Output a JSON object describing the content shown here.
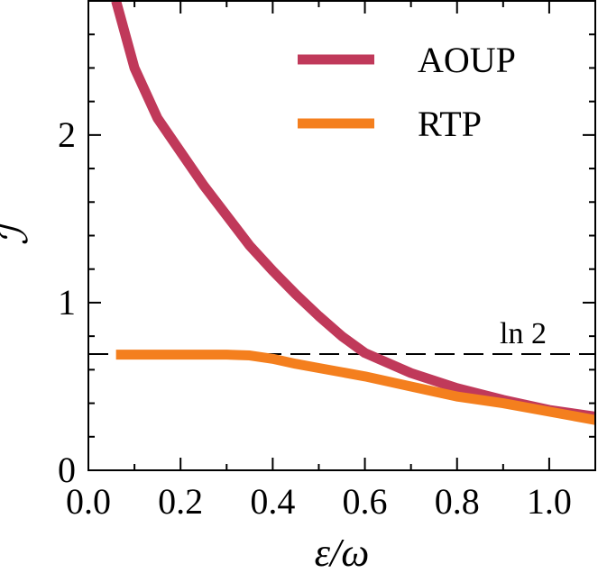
{
  "chart_data": {
    "type": "line",
    "x_label": "ε/ω",
    "y_label": "ℐ",
    "x": [
      0.06,
      0.1,
      0.15,
      0.2,
      0.25,
      0.3,
      0.35,
      0.4,
      0.45,
      0.5,
      0.55,
      0.6,
      0.7,
      0.8,
      0.9,
      1.0,
      1.1
    ],
    "series": [
      {
        "name": "AOUP",
        "color": "#c0395a",
        "values": [
          2.8,
          2.4,
          2.1,
          1.9,
          1.7,
          1.52,
          1.34,
          1.19,
          1.05,
          0.92,
          0.8,
          0.7,
          0.58,
          0.49,
          0.42,
          0.36,
          0.32
        ]
      },
      {
        "name": "RTP",
        "color": "#f47f1e",
        "values": [
          0.69,
          0.69,
          0.69,
          0.69,
          0.69,
          0.69,
          0.685,
          0.665,
          0.635,
          0.61,
          0.585,
          0.56,
          0.5,
          0.44,
          0.4,
          0.35,
          0.3
        ]
      }
    ],
    "hline": 0.693,
    "hline_label": "ln 2",
    "xlim": [
      0,
      1.1
    ],
    "ylim": [
      0,
      2.8
    ],
    "xticks": [
      {
        "value": 0,
        "label": "0.0"
      },
      0.2,
      0.4,
      0.6,
      0.8,
      {
        "value": 1,
        "label": "1.0"
      }
    ],
    "yticks": [
      0,
      1,
      2
    ],
    "xminorticks": [
      0.1,
      0.3,
      0.5,
      0.7,
      0.9,
      1.1
    ],
    "yminorticks": [
      0.2,
      0.4,
      0.6,
      0.8,
      1.2,
      1.4,
      1.6,
      1.8,
      2.2,
      2.4,
      2.6
    ],
    "legend": "upper right"
  }
}
